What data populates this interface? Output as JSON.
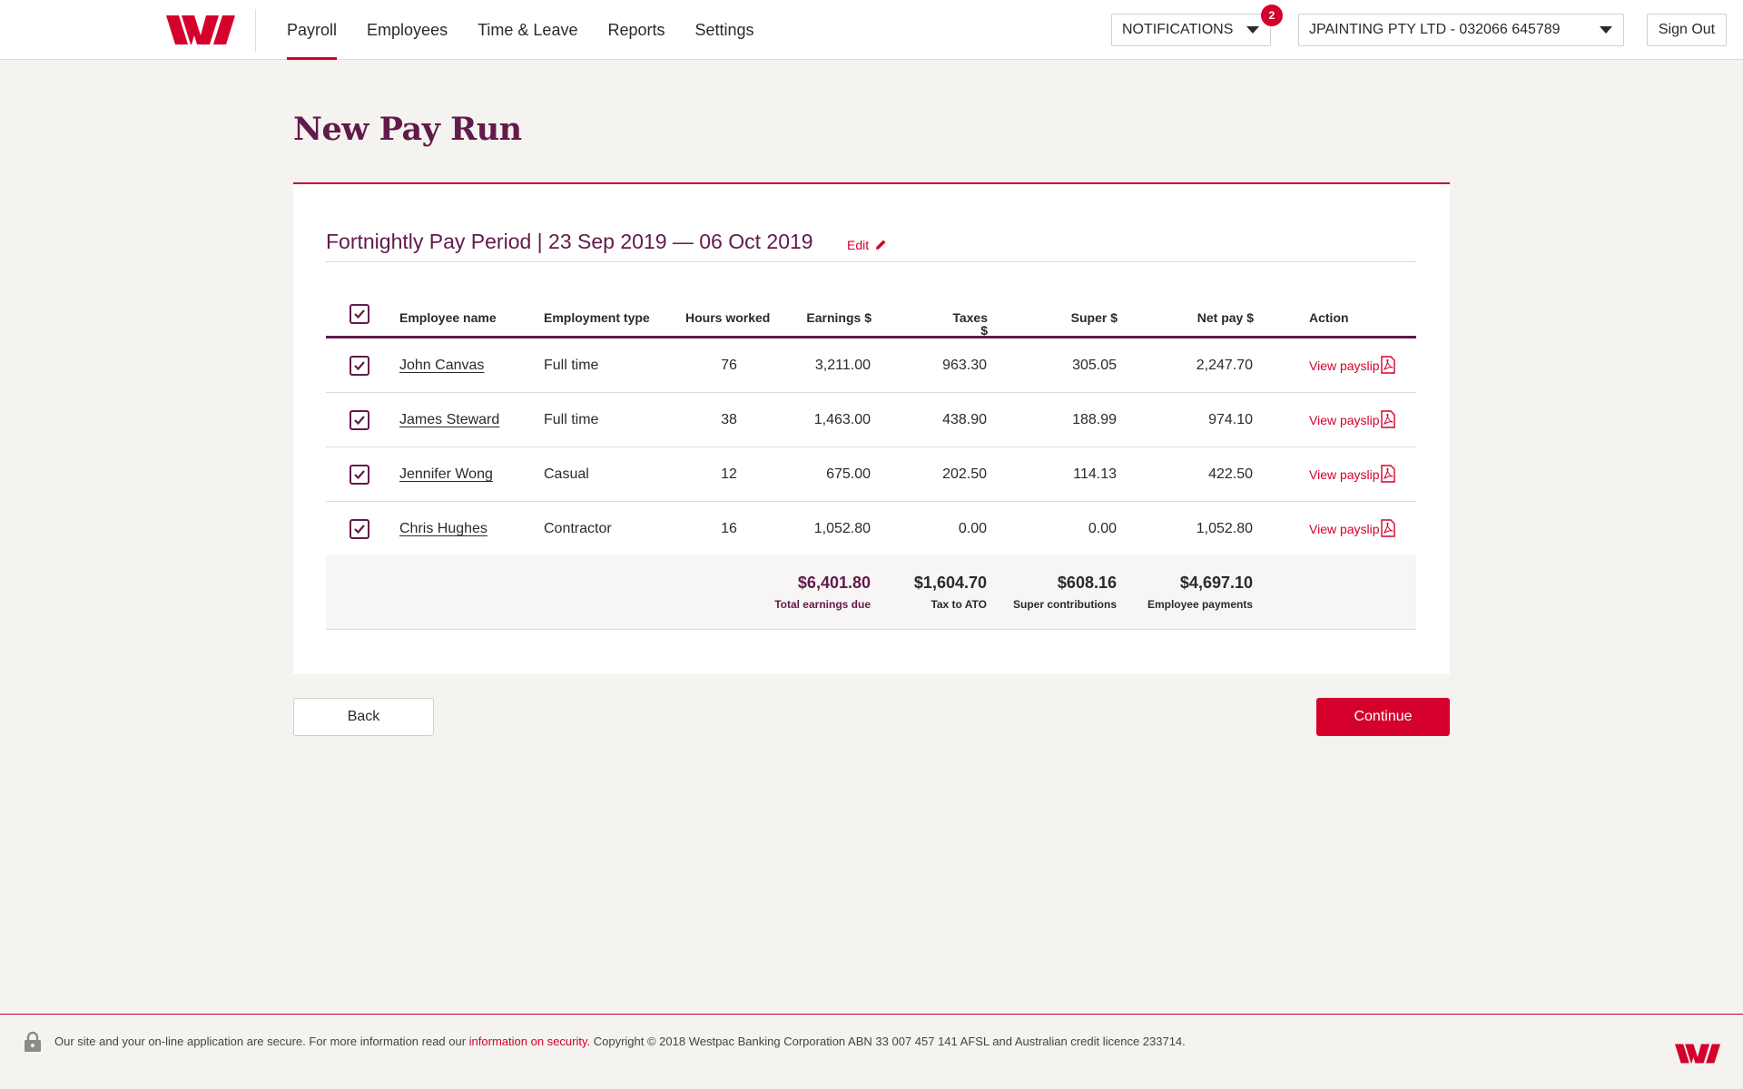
{
  "header": {
    "nav": [
      {
        "label": "Payroll",
        "active": true
      },
      {
        "label": "Employees",
        "active": false
      },
      {
        "label": "Time & Leave",
        "active": false
      },
      {
        "label": "Reports",
        "active": false
      },
      {
        "label": "Settings",
        "active": false
      }
    ],
    "notifications_label": "NOTIFICATIONS",
    "notifications_count": "2",
    "account_label": "JPAINTING PTY LTD - 032066 645789",
    "signout_label": "Sign Out",
    "brand_color": "#d5002b"
  },
  "page": {
    "title": "New Pay Run",
    "period_title": "Fortnightly Pay Period | 23 Sep 2019 — 06 Oct 2019",
    "edit_label": "Edit"
  },
  "table": {
    "columns": {
      "name": "Employee name",
      "type": "Employment type",
      "hours": "Hours worked",
      "earnings": "Earnings $",
      "taxes": "Taxes",
      "taxes_unit": "$",
      "super": "Super $",
      "net": "Net pay $",
      "action": "Action"
    },
    "rows": [
      {
        "name": "John Canvas",
        "type": "Full time",
        "hours": "76",
        "earnings": "3,211.00",
        "taxes": "963.30",
        "super": "305.05",
        "net": "2,247.70",
        "action": "View payslip",
        "checked": true
      },
      {
        "name": "James Steward",
        "type": "Full time",
        "hours": "38",
        "earnings": "1,463.00",
        "taxes": "438.90",
        "super": "188.99",
        "net": "974.10",
        "action": "View payslip",
        "checked": true
      },
      {
        "name": "Jennifer Wong",
        "type": "Casual",
        "hours": "12",
        "earnings": "675.00",
        "taxes": "202.50",
        "super": "114.13",
        "net": "422.50",
        "action": "View payslip",
        "checked": true
      },
      {
        "name": "Chris Hughes",
        "type": "Contractor",
        "hours": "16",
        "earnings": "1,052.80",
        "taxes": "0.00",
        "super": "0.00",
        "net": "1,052.80",
        "action": "View payslip",
        "checked": true
      }
    ],
    "totals": {
      "earnings": {
        "value": "$6,401.80",
        "label": "Total earnings due"
      },
      "taxes": {
        "value": "$1,604.70",
        "label": "Tax to ATO"
      },
      "super": {
        "value": "$608.16",
        "label": "Super contributions"
      },
      "net": {
        "value": "$4,697.10",
        "label": "Employee payments"
      }
    }
  },
  "actions": {
    "back_label": "Back",
    "continue_label": "Continue"
  },
  "footer": {
    "text_before": "Our site and your on-line application are secure. For more information read our ",
    "link_label": "information on security.",
    "text_after": " Copyright © 2018 Westpac Banking Corporation ABN 33 007 457 141 AFSL and Australian credit licence 233714."
  }
}
